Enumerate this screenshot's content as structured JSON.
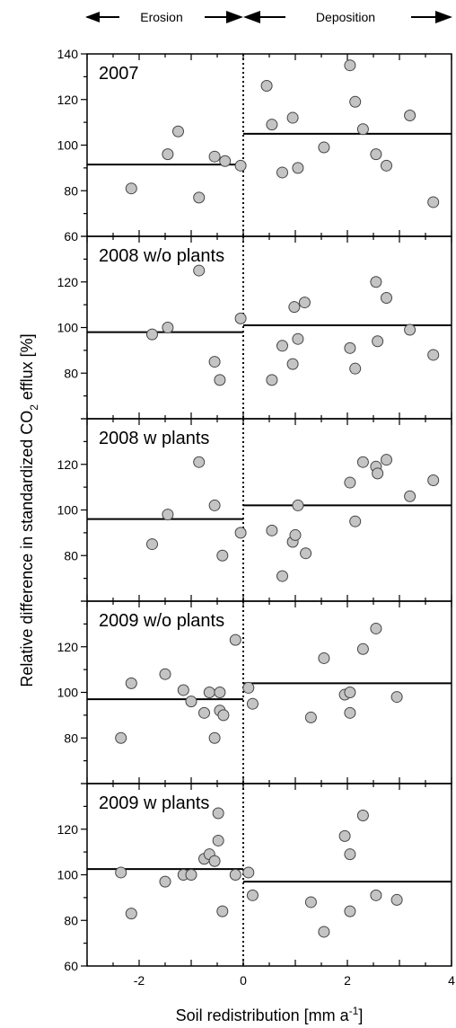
{
  "arrows": {
    "left_label": "Erosion",
    "right_label": "Deposition"
  },
  "axes": {
    "xlabel_main": "Soil redistribution [mm a",
    "xlabel_sup": "-1",
    "xlabel_end": "]",
    "ylabel_main": "Relative difference in standardized CO",
    "ylabel_sub": "2",
    "ylabel_end": " efflux [%]",
    "x_tick_labels": [
      "-2",
      "0",
      "2",
      "4"
    ]
  },
  "chart_data": [
    {
      "type": "scatter",
      "title": "2007",
      "xlim": [
        -3,
        4
      ],
      "ylim": [
        60,
        140
      ],
      "y_ticks": [
        60,
        80,
        100,
        120,
        140
      ],
      "y_tick_labels": [
        "60",
        "80",
        "100",
        "120",
        "140"
      ],
      "points": [
        {
          "x": -2.15,
          "y": 81
        },
        {
          "x": -1.45,
          "y": 96
        },
        {
          "x": -1.25,
          "y": 106
        },
        {
          "x": -0.85,
          "y": 77
        },
        {
          "x": -0.55,
          "y": 95
        },
        {
          "x": -0.35,
          "y": 93
        },
        {
          "x": -0.05,
          "y": 91
        },
        {
          "x": 0.45,
          "y": 126
        },
        {
          "x": 0.55,
          "y": 109
        },
        {
          "x": 0.75,
          "y": 88
        },
        {
          "x": 0.95,
          "y": 112
        },
        {
          "x": 1.05,
          "y": 90
        },
        {
          "x": 1.55,
          "y": 99
        },
        {
          "x": 2.05,
          "y": 135
        },
        {
          "x": 2.15,
          "y": 119
        },
        {
          "x": 2.3,
          "y": 107
        },
        {
          "x": 2.55,
          "y": 96
        },
        {
          "x": 2.75,
          "y": 91
        },
        {
          "x": 3.2,
          "y": 113
        },
        {
          "x": 3.65,
          "y": 75
        }
      ],
      "means": [
        {
          "x0": -3,
          "x1": 0,
          "y": 91.5
        },
        {
          "x0": 0,
          "x1": 4,
          "y": 105
        }
      ]
    },
    {
      "type": "scatter",
      "title": "2008 w/o plants",
      "xlim": [
        -3,
        4
      ],
      "ylim": [
        60,
        140
      ],
      "y_ticks": [
        80,
        100,
        120
      ],
      "y_tick_labels": [
        "80",
        "100",
        "120"
      ],
      "points": [
        {
          "x": -1.75,
          "y": 97
        },
        {
          "x": -1.45,
          "y": 100
        },
        {
          "x": -0.85,
          "y": 125
        },
        {
          "x": -0.55,
          "y": 85
        },
        {
          "x": -0.45,
          "y": 77
        },
        {
          "x": -0.05,
          "y": 104
        },
        {
          "x": 0.55,
          "y": 77
        },
        {
          "x": 0.75,
          "y": 92
        },
        {
          "x": 0.95,
          "y": 84
        },
        {
          "x": 0.98,
          "y": 109
        },
        {
          "x": 1.05,
          "y": 95
        },
        {
          "x": 1.18,
          "y": 111
        },
        {
          "x": 2.05,
          "y": 91
        },
        {
          "x": 2.15,
          "y": 82
        },
        {
          "x": 2.55,
          "y": 120
        },
        {
          "x": 2.58,
          "y": 94
        },
        {
          "x": 2.75,
          "y": 113
        },
        {
          "x": 3.2,
          "y": 99
        },
        {
          "x": 3.65,
          "y": 88
        }
      ],
      "means": [
        {
          "x0": -3,
          "x1": 0,
          "y": 98
        },
        {
          "x0": 0,
          "x1": 4,
          "y": 101
        }
      ]
    },
    {
      "type": "scatter",
      "title": "2008 w plants",
      "xlim": [
        -3,
        4
      ],
      "ylim": [
        60,
        140
      ],
      "y_ticks": [
        80,
        100,
        120
      ],
      "y_tick_labels": [
        "80",
        "100",
        "120"
      ],
      "points": [
        {
          "x": -1.75,
          "y": 85
        },
        {
          "x": -1.45,
          "y": 98
        },
        {
          "x": -0.85,
          "y": 121
        },
        {
          "x": -0.55,
          "y": 102
        },
        {
          "x": -0.4,
          "y": 80
        },
        {
          "x": -0.05,
          "y": 90
        },
        {
          "x": 0.55,
          "y": 91
        },
        {
          "x": 0.75,
          "y": 71
        },
        {
          "x": 0.95,
          "y": 86
        },
        {
          "x": 1.0,
          "y": 89
        },
        {
          "x": 1.05,
          "y": 102
        },
        {
          "x": 1.2,
          "y": 81
        },
        {
          "x": 2.05,
          "y": 112
        },
        {
          "x": 2.15,
          "y": 95
        },
        {
          "x": 2.3,
          "y": 121
        },
        {
          "x": 2.55,
          "y": 119
        },
        {
          "x": 2.58,
          "y": 116
        },
        {
          "x": 2.75,
          "y": 122
        },
        {
          "x": 3.2,
          "y": 106
        },
        {
          "x": 3.65,
          "y": 113
        }
      ],
      "means": [
        {
          "x0": -3,
          "x1": 0,
          "y": 96
        },
        {
          "x0": 0,
          "x1": 4,
          "y": 102
        }
      ]
    },
    {
      "type": "scatter",
      "title": "2009 w/o plants",
      "xlim": [
        -3,
        4
      ],
      "ylim": [
        60,
        140
      ],
      "y_ticks": [
        80,
        100,
        120
      ],
      "y_tick_labels": [
        "80",
        "100",
        "120"
      ],
      "points": [
        {
          "x": -2.35,
          "y": 80
        },
        {
          "x": -2.15,
          "y": 104
        },
        {
          "x": -1.5,
          "y": 108
        },
        {
          "x": -1.15,
          "y": 101
        },
        {
          "x": -1.0,
          "y": 96
        },
        {
          "x": -0.75,
          "y": 91
        },
        {
          "x": -0.65,
          "y": 100
        },
        {
          "x": -0.55,
          "y": 80
        },
        {
          "x": -0.45,
          "y": 100
        },
        {
          "x": -0.45,
          "y": 92
        },
        {
          "x": -0.38,
          "y": 90
        },
        {
          "x": -0.15,
          "y": 123
        },
        {
          "x": 0.1,
          "y": 102
        },
        {
          "x": 0.18,
          "y": 95
        },
        {
          "x": 1.3,
          "y": 89
        },
        {
          "x": 1.55,
          "y": 115
        },
        {
          "x": 1.95,
          "y": 99
        },
        {
          "x": 2.05,
          "y": 100
        },
        {
          "x": 2.05,
          "y": 91
        },
        {
          "x": 2.3,
          "y": 119
        },
        {
          "x": 2.55,
          "y": 128
        },
        {
          "x": 2.95,
          "y": 98
        }
      ],
      "means": [
        {
          "x0": -3,
          "x1": 0,
          "y": 97
        },
        {
          "x0": 0,
          "x1": 4,
          "y": 104
        }
      ]
    },
    {
      "type": "scatter",
      "title": "2009 w plants",
      "xlim": [
        -3,
        4
      ],
      "ylim": [
        60,
        140
      ],
      "y_ticks": [
        60,
        80,
        100,
        120
      ],
      "y_tick_labels": [
        "60",
        "80",
        "100",
        "120"
      ],
      "points": [
        {
          "x": -2.35,
          "y": 101
        },
        {
          "x": -2.15,
          "y": 83
        },
        {
          "x": -1.5,
          "y": 97
        },
        {
          "x": -1.15,
          "y": 100
        },
        {
          "x": -1.0,
          "y": 100
        },
        {
          "x": -0.75,
          "y": 107
        },
        {
          "x": -0.65,
          "y": 109
        },
        {
          "x": -0.55,
          "y": 106
        },
        {
          "x": -0.48,
          "y": 115
        },
        {
          "x": -0.48,
          "y": 127
        },
        {
          "x": -0.4,
          "y": 84
        },
        {
          "x": -0.15,
          "y": 100
        },
        {
          "x": 0.1,
          "y": 101
        },
        {
          "x": 0.18,
          "y": 91
        },
        {
          "x": 1.3,
          "y": 88
        },
        {
          "x": 1.55,
          "y": 75
        },
        {
          "x": 1.95,
          "y": 117
        },
        {
          "x": 2.05,
          "y": 109
        },
        {
          "x": 2.05,
          "y": 84
        },
        {
          "x": 2.3,
          "y": 126
        },
        {
          "x": 2.55,
          "y": 91
        },
        {
          "x": 2.95,
          "y": 89
        }
      ],
      "means": [
        {
          "x0": -3,
          "x1": 0,
          "y": 102.5
        },
        {
          "x0": 0,
          "x1": 4,
          "y": 97
        }
      ]
    }
  ],
  "colors": {
    "marker_fill": "#c4c4c4",
    "marker_stroke": "#444444",
    "line": "#000000"
  }
}
